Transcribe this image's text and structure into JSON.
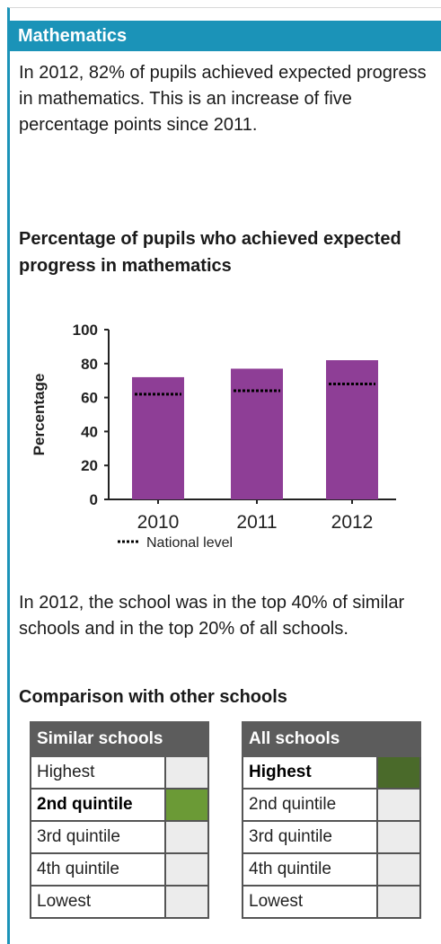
{
  "panel": {
    "title": "Mathematics",
    "intro": "In 2012, 82% of pupils achieved expected progress in mathematics. This is an increase of five percentage points since 2011.",
    "chart_title": "Percentage of pupils who achieved expected progress in mathematics",
    "summary": "In 2012, the school was in the top 40% of similar schools and in the top 20% of all schools.",
    "comparison_title": "Comparison with other schools"
  },
  "chart_data": {
    "type": "bar",
    "categories": [
      "2010",
      "2011",
      "2012"
    ],
    "values": [
      72,
      77,
      82
    ],
    "national_level": [
      62,
      64,
      68
    ],
    "ylabel": "Percentage",
    "ylim": [
      0,
      100
    ],
    "yticks": [
      "0",
      "20",
      "40",
      "60",
      "80",
      "100"
    ],
    "legend_national": "National level",
    "bar_color": "#8e3e96",
    "grid": false
  },
  "similar_schools": {
    "header": "Similar schools",
    "rows": [
      "Highest",
      "2nd quintile",
      "3rd quintile",
      "4th quintile",
      "Lowest"
    ],
    "selected": 1
  },
  "all_schools": {
    "header": "All schools",
    "rows": [
      "Highest",
      "2nd quintile",
      "3rd quintile",
      "4th quintile",
      "Lowest"
    ],
    "selected": 0
  }
}
